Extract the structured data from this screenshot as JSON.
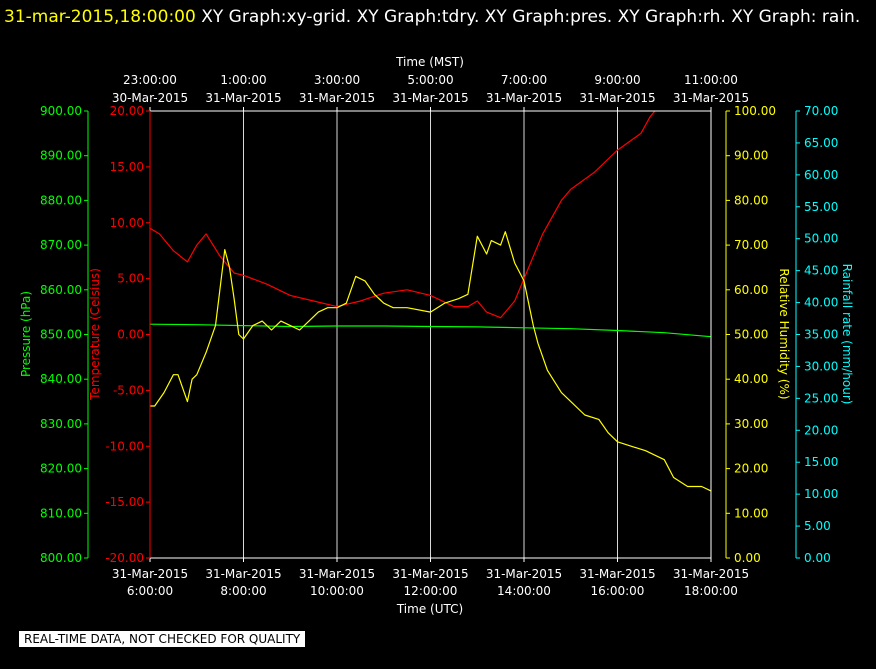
{
  "header": {
    "timestamp": "31-mar-2015,18:00:00",
    "graphs": "XY Graph:xy-grid.  XY Graph:tdry.  XY Graph:pres.  XY Graph:rh.  XY Graph: rain."
  },
  "footer_note": "REAL-TIME DATA, NOT CHECKED FOR QUALITY",
  "colors": {
    "pressure": "#00ff00",
    "temperature": "#ff0000",
    "humidity": "#ffff00",
    "rain": "#00ffff",
    "grid": "#ffffff",
    "background": "#000000"
  },
  "chart_data": {
    "type": "line",
    "top_axis": {
      "label": "Time (MST)",
      "ticks": [
        [
          "23:00:00",
          "30-Mar-2015"
        ],
        [
          "1:00:00",
          "31-Mar-2015"
        ],
        [
          "3:00:00",
          "31-Mar-2015"
        ],
        [
          "5:00:00",
          "31-Mar-2015"
        ],
        [
          "7:00:00",
          "31-Mar-2015"
        ],
        [
          "9:00:00",
          "31-Mar-2015"
        ],
        [
          "11:00:00",
          "31-Mar-2015"
        ]
      ]
    },
    "bottom_axis": {
      "label": "Time (UTC)",
      "ticks": [
        [
          "31-Mar-2015",
          "6:00:00"
        ],
        [
          "31-Mar-2015",
          "8:00:00"
        ],
        [
          "31-Mar-2015",
          "10:00:00"
        ],
        [
          "31-Mar-2015",
          "12:00:00"
        ],
        [
          "31-Mar-2015",
          "14:00:00"
        ],
        [
          "31-Mar-2015",
          "16:00:00"
        ],
        [
          "31-Mar-2015",
          "18:00:00"
        ]
      ]
    },
    "xlim": [
      6,
      18
    ],
    "grid": true,
    "axes": {
      "pressure": {
        "label": "Pressure (hPa)",
        "ylim": [
          800,
          900
        ],
        "ticks": [
          "800.00",
          "810.00",
          "820.00",
          "830.00",
          "840.00",
          "850.00",
          "860.00",
          "870.00",
          "880.00",
          "890.00",
          "900.00"
        ]
      },
      "temperature": {
        "label": "Temperature (Celsius)",
        "ylim": [
          -20,
          20
        ],
        "ticks": [
          "-20.00",
          "-15.00",
          "-10.00",
          "-5.00",
          "0.00",
          "5.00",
          "10.00",
          "15.00",
          "20.00"
        ]
      },
      "humidity": {
        "label": "Relative Humidity (%)",
        "ylim": [
          0,
          100
        ],
        "ticks": [
          "0.00",
          "10.00",
          "20.00",
          "30.00",
          "40.00",
          "50.00",
          "60.00",
          "70.00",
          "80.00",
          "90.00",
          "100.00"
        ]
      },
      "rain": {
        "label": "Rainfall rate (mm/hour)",
        "ylim": [
          0,
          70
        ],
        "ticks": [
          "0.00",
          "5.00",
          "10.00",
          "15.00",
          "20.00",
          "25.00",
          "30.00",
          "35.00",
          "40.00",
          "45.00",
          "50.00",
          "55.00",
          "60.00",
          "65.00",
          "70.00"
        ]
      }
    },
    "series": [
      {
        "key": "pressure",
        "x": [
          6.0,
          7.0,
          8.0,
          9.0,
          10.0,
          11.0,
          12.0,
          13.0,
          14.0,
          15.0,
          16.0,
          17.0,
          18.0
        ],
        "y": [
          852.3,
          852.2,
          852.0,
          851.8,
          851.9,
          851.9,
          851.8,
          851.7,
          851.5,
          851.3,
          850.9,
          850.4,
          849.5
        ]
      },
      {
        "key": "temperature",
        "x": [
          6.0,
          6.2,
          6.5,
          6.8,
          7.0,
          7.2,
          7.5,
          7.8,
          8.0,
          8.5,
          9.0,
          9.5,
          10.0,
          10.5,
          11.0,
          11.5,
          12.0,
          12.5,
          12.8,
          13.0,
          13.2,
          13.5,
          13.8,
          14.0,
          14.4,
          14.8,
          15.0,
          15.5,
          16.0,
          16.5,
          16.7,
          16.8
        ],
        "y": [
          9.5,
          9.0,
          7.5,
          6.5,
          8.0,
          9.0,
          7.0,
          5.5,
          5.3,
          4.5,
          3.5,
          3.0,
          2.5,
          3.0,
          3.7,
          4.0,
          3.5,
          2.5,
          2.5,
          3.0,
          2.0,
          1.5,
          3.0,
          5.0,
          9.0,
          12.0,
          13.0,
          14.5,
          16.5,
          18.0,
          19.5,
          20.0
        ]
      },
      {
        "key": "humidity",
        "x": [
          6.0,
          6.1,
          6.3,
          6.5,
          6.6,
          6.8,
          6.9,
          7.0,
          7.2,
          7.4,
          7.6,
          7.7,
          7.8,
          7.9,
          8.0,
          8.2,
          8.4,
          8.6,
          8.8,
          9.0,
          9.2,
          9.4,
          9.6,
          9.8,
          10.0,
          10.2,
          10.4,
          10.6,
          10.8,
          11.0,
          11.2,
          11.5,
          12.0,
          12.3,
          12.6,
          12.8,
          13.0,
          13.2,
          13.3,
          13.5,
          13.6,
          13.8,
          14.0,
          14.2,
          14.3,
          14.5,
          14.8,
          15.0,
          15.3,
          15.6,
          15.8,
          16.0,
          16.3,
          16.6,
          16.8,
          17.0,
          17.2,
          17.5,
          17.8,
          18.0
        ],
        "y": [
          34,
          34,
          37,
          41,
          41,
          35,
          40,
          41,
          46,
          52,
          69,
          65,
          58,
          50,
          49,
          52,
          53,
          51,
          53,
          52,
          51,
          53,
          55,
          56,
          56,
          57,
          63,
          62,
          59,
          57,
          56,
          56,
          55,
          57,
          58,
          59,
          72,
          68,
          71,
          70,
          73,
          66,
          62,
          52,
          48,
          42,
          37,
          35,
          32,
          31,
          28,
          26,
          25,
          24,
          23,
          22,
          18,
          16,
          16,
          15
        ]
      }
    ]
  }
}
